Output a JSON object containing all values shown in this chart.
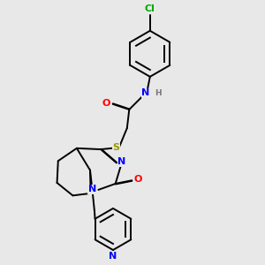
{
  "background_color": "#e8e8e8",
  "bond_color": "#000000",
  "atom_colors": {
    "N": "#0000ff",
    "O": "#ff0000",
    "S": "#999900",
    "Cl": "#00aa00",
    "H": "#777777",
    "C": "#000000"
  },
  "figsize": [
    3.0,
    3.0
  ],
  "dpi": 100
}
